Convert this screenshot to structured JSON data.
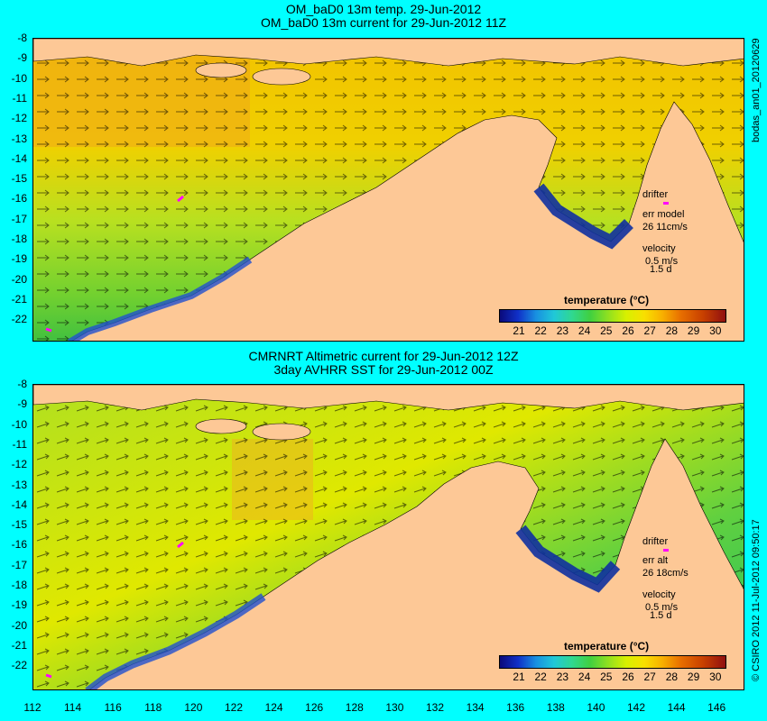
{
  "top_panel": {
    "title_line1": "OM_baD0 13m temp. 29-Jun-2012",
    "title_line2": "OM_baD0 13m current for 29-Jun-2012 11Z",
    "side_label": "bodas_an01_20120629",
    "legend": {
      "drifter": "drifter",
      "err_label": "err model",
      "err_value": "26 11cm/s",
      "velocity": "velocity",
      "velocity_scale": "0.5 m/s",
      "duration": "1.5 d"
    },
    "colorbar_title": "temperature (°C)"
  },
  "bottom_panel": {
    "title_line1": "CMRNRT Altimetric current for 29-Jun-2012 12Z",
    "title_line2": "3day AVHRR SST for 29-Jun-2012 00Z",
    "side_label": "© CSIRO 2012  11-Jul-2012 09:50:17",
    "legend": {
      "drifter": "drifter",
      "err_label": "err alt",
      "err_value": "26 18cm/s",
      "velocity": "velocity",
      "velocity_scale": "0.5 m/s",
      "duration": "1.5 d"
    },
    "colorbar_title": "temperature (°C)"
  },
  "colorbar_ticks": [
    "21",
    "22",
    "23",
    "24",
    "25",
    "26",
    "27",
    "28",
    "29",
    "30"
  ],
  "lat_ticks": [
    "-8",
    "-9",
    "-10",
    "-11",
    "-12",
    "-13",
    "-14",
    "-15",
    "-16",
    "-17",
    "-18",
    "-19",
    "-20",
    "-21",
    "-22"
  ],
  "lon_ticks": [
    "112",
    "114",
    "116",
    "118",
    "120",
    "122",
    "124",
    "126",
    "128",
    "130",
    "132",
    "134",
    "136",
    "138",
    "140",
    "142",
    "144",
    "146"
  ],
  "colors": {
    "background": "#00ffff",
    "land": "#fdc896",
    "drifter": "#ff00ff"
  }
}
